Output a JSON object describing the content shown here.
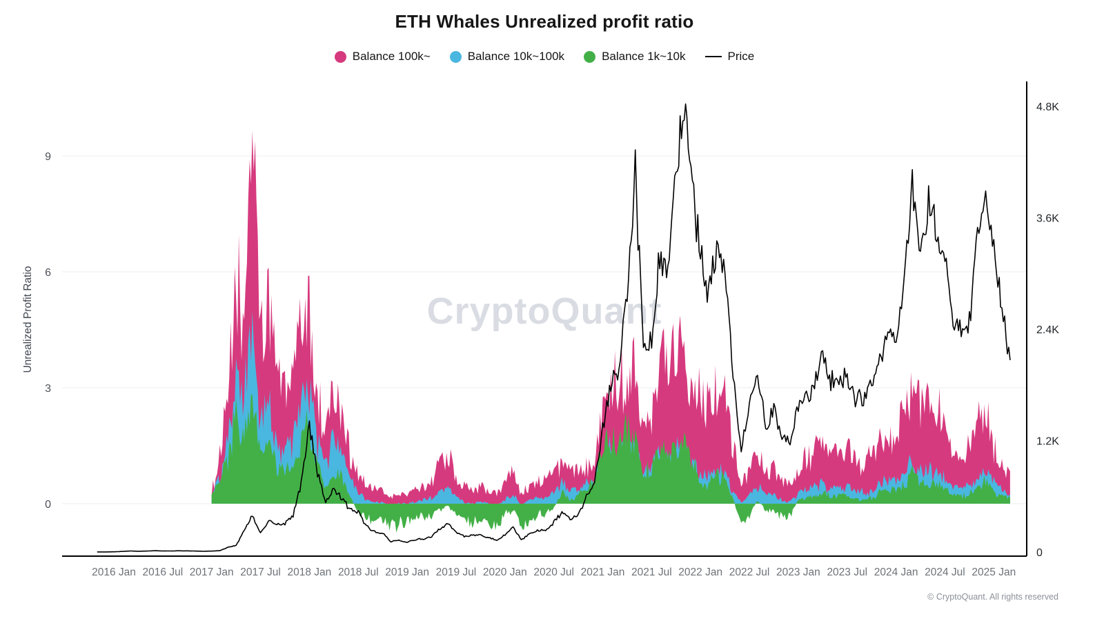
{
  "header": {
    "title": "ETH Whales Unrealized profit ratio"
  },
  "legend": [
    {
      "label": "Balance 100k~",
      "color": "#d63a7e",
      "type": "dot"
    },
    {
      "label": "Balance 10k~100k",
      "color": "#4ab7e0",
      "type": "dot"
    },
    {
      "label": "Balance 1k~10k",
      "color": "#43b047",
      "type": "dot"
    },
    {
      "label": "Price",
      "color": "#000000",
      "type": "line"
    }
  ],
  "watermark": "CryptoQuant",
  "footer": "© CryptoQuant. All rights reserved",
  "chart_data": {
    "type": "area",
    "title": "ETH Whales Unrealized profit ratio",
    "ylabel_left": "Unrealized Profit Ratio",
    "left_axis": {
      "ticks": [
        0,
        3,
        6,
        9
      ],
      "range": [
        -1.35,
        10.9
      ]
    },
    "right_axis": {
      "ticks": [
        "0",
        "1.2K",
        "2.4K",
        "3.6K",
        "4.8K"
      ],
      "tick_values": [
        0,
        1200,
        2400,
        3600,
        4800
      ],
      "range": [
        0,
        5100
      ]
    },
    "x_ticks": [
      "2016 Jan",
      "2016 Jul",
      "2017 Jan",
      "2017 Jul",
      "2018 Jan",
      "2018 Jul",
      "2019 Jan",
      "2019 Jul",
      "2020 Jan",
      "2020 Jul",
      "2021 Jan",
      "2021 Jul",
      "2022 Jan",
      "2022 Jul",
      "2023 Jan",
      "2023 Jul",
      "2024 Jan",
      "2024 Jul",
      "2025 Jan"
    ],
    "series": [
      {
        "name": "Balance 100k~",
        "type": "area",
        "axis": "left",
        "color": "#d63a7e",
        "start": "2017-01",
        "values": [
          0.3,
          1.2,
          2.6,
          5.6,
          4.6,
          10.2,
          4.2,
          5.2,
          3.4,
          3.0,
          3.6,
          4.6,
          5.0,
          2.6,
          2.0,
          3.0,
          2.3,
          1.3,
          0.8,
          0.45,
          0.35,
          0.35,
          0.15,
          0.25,
          0.25,
          0.35,
          0.45,
          0.55,
          1.1,
          1.35,
          0.65,
          0.45,
          0.35,
          0.45,
          0.3,
          0.25,
          0.55,
          1.0,
          0.25,
          0.45,
          0.55,
          0.65,
          0.85,
          1.05,
          0.8,
          0.85,
          1.0,
          1.3,
          2.6,
          3.3,
          2.9,
          3.4,
          3.6,
          2.2,
          2.5,
          3.9,
          3.4,
          4.0,
          4.2,
          3.4,
          2.9,
          2.6,
          3.1,
          2.9,
          1.6,
          0.5,
          0.9,
          1.3,
          0.85,
          0.85,
          0.55,
          0.45,
          0.85,
          1.2,
          1.3,
          1.5,
          1.3,
          1.3,
          1.45,
          1.1,
          1.05,
          1.2,
          1.55,
          1.8,
          1.85,
          2.3,
          3.1,
          2.5,
          2.6,
          2.5,
          2.2,
          1.5,
          1.35,
          1.5,
          2.05,
          2.2,
          1.5,
          1.0,
          0.7
        ]
      },
      {
        "name": "Balance 10k~100k",
        "type": "area",
        "axis": "left",
        "color": "#4ab7e0",
        "start": "2017-01",
        "values": [
          0.2,
          0.7,
          1.6,
          3.1,
          2.6,
          4.6,
          2.1,
          2.4,
          1.6,
          1.3,
          1.6,
          2.6,
          3.0,
          1.5,
          1.0,
          1.6,
          1.2,
          0.6,
          0.3,
          0.1,
          0.05,
          0.05,
          -0.1,
          0.0,
          0.0,
          0.05,
          0.1,
          0.15,
          0.35,
          0.45,
          0.15,
          0.05,
          0.0,
          0.05,
          0.0,
          -0.05,
          0.1,
          0.25,
          -0.05,
          0.1,
          0.15,
          0.15,
          0.3,
          0.5,
          0.35,
          0.4,
          0.5,
          0.65,
          1.2,
          1.5,
          1.3,
          1.6,
          1.5,
          0.8,
          0.9,
          1.3,
          1.1,
          1.3,
          1.4,
          1.0,
          0.8,
          0.7,
          0.9,
          0.8,
          0.35,
          0.05,
          0.25,
          0.45,
          0.2,
          0.25,
          0.1,
          0.05,
          0.25,
          0.35,
          0.4,
          0.5,
          0.4,
          0.4,
          0.45,
          0.3,
          0.3,
          0.35,
          0.5,
          0.6,
          0.6,
          0.75,
          1.05,
          0.8,
          0.85,
          0.8,
          0.7,
          0.45,
          0.4,
          0.45,
          0.7,
          0.9,
          0.55,
          0.35,
          0.25
        ]
      },
      {
        "name": "Balance 1k~10k",
        "type": "area",
        "axis": "left",
        "color": "#43b047",
        "start": "2017-01",
        "values": [
          0.2,
          0.5,
          1.2,
          2.1,
          1.8,
          2.6,
          1.2,
          1.5,
          1.0,
          0.8,
          1.0,
          1.6,
          1.9,
          0.9,
          0.5,
          0.9,
          0.6,
          0.2,
          -0.2,
          -0.4,
          -0.45,
          -0.4,
          -0.6,
          -0.5,
          -0.5,
          -0.4,
          -0.35,
          -0.3,
          -0.15,
          -0.1,
          -0.3,
          -0.45,
          -0.5,
          -0.4,
          -0.5,
          -0.55,
          -0.3,
          -0.15,
          -0.6,
          -0.4,
          -0.3,
          -0.25,
          -0.1,
          0.3,
          0.1,
          0.2,
          0.4,
          0.6,
          1.5,
          1.8,
          1.5,
          1.9,
          1.8,
          0.8,
          0.95,
          1.35,
          1.15,
          1.35,
          1.45,
          1.05,
          0.6,
          0.5,
          0.8,
          0.6,
          0.1,
          -0.45,
          -0.3,
          0.1,
          -0.2,
          -0.2,
          -0.35,
          -0.3,
          0.1,
          0.2,
          0.2,
          0.3,
          0.2,
          0.2,
          0.25,
          0.1,
          0.1,
          0.15,
          0.3,
          0.4,
          0.35,
          0.5,
          0.8,
          0.5,
          0.55,
          0.5,
          0.45,
          0.2,
          0.2,
          0.25,
          0.45,
          0.55,
          0.3,
          0.2,
          0.15
        ]
      },
      {
        "name": "Price",
        "type": "line",
        "axis": "right",
        "color": "#000000",
        "start": "2015-11",
        "values": [
          0.9,
          0.9,
          2,
          6,
          11,
          8,
          10,
          14,
          11,
          11,
          13,
          12,
          10,
          8,
          10,
          15,
          50,
          70,
          230,
          390,
          200,
          330,
          290,
          300,
          400,
          750,
          1380,
          850,
          530,
          680,
          580,
          450,
          430,
          280,
          220,
          200,
          110,
          130,
          105,
          135,
          140,
          165,
          250,
          300,
          210,
          170,
          180,
          180,
          150,
          130,
          180,
          260,
          130,
          200,
          230,
          230,
          320,
          430,
          360,
          390,
          600,
          730,
          1350,
          1800,
          1900,
          2800,
          4100,
          2200,
          2300,
          3200,
          3000,
          4200,
          4750,
          3900,
          3200,
          2800,
          3300,
          3000,
          1900,
          1100,
          1600,
          1900,
          1350,
          1550,
          1200,
          1200,
          1600,
          1650,
          1800,
          2100,
          1850,
          1900,
          1900,
          1650,
          1650,
          1800,
          2050,
          2300,
          2300,
          3000,
          3950,
          3150,
          3800,
          3400,
          3300,
          2500,
          2350,
          2500,
          3400,
          3950,
          3200,
          2700,
          2000
        ]
      }
    ]
  }
}
